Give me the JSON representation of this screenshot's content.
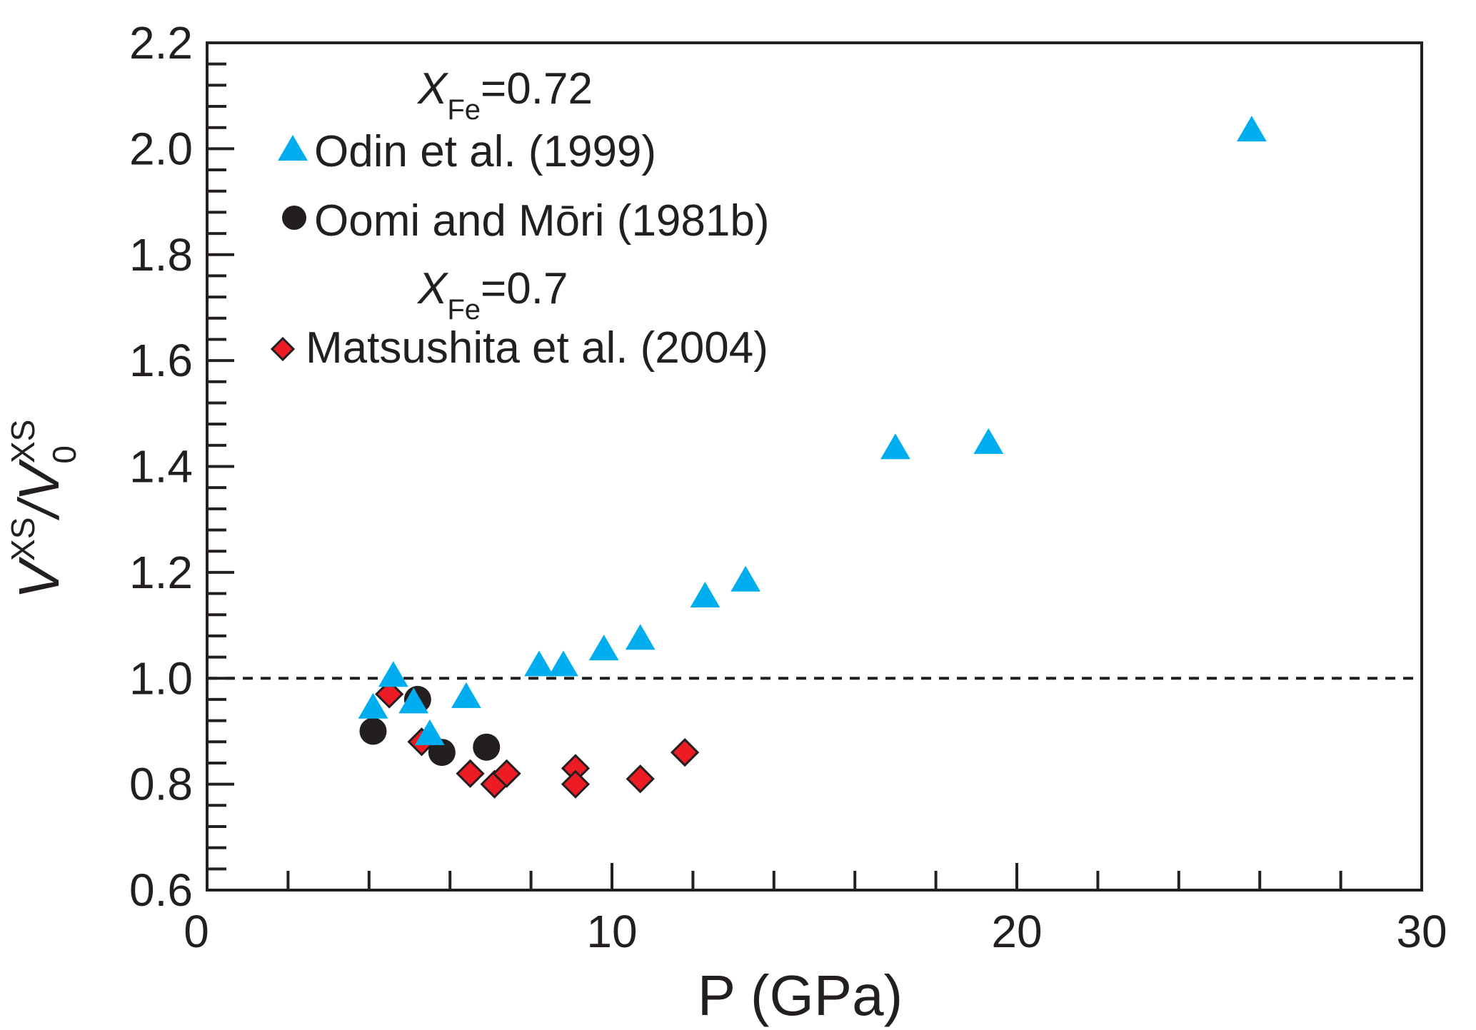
{
  "chart_data": {
    "type": "scatter",
    "title": "",
    "xlabel": "P (GPa)",
    "ylabel": {
      "main": "V",
      "sup": "XS",
      "slash": "/",
      "main2": "V",
      "sub2": "0",
      "sup2": "XS"
    },
    "xlim": [
      0,
      30
    ],
    "ylim": [
      0.6,
      2.2
    ],
    "x_ticks": [
      0,
      10,
      20,
      30
    ],
    "x_tick_labels": [
      "0",
      "10",
      "20",
      "30"
    ],
    "x_minor_step": 2,
    "y_ticks": [
      0.6,
      0.8,
      1.0,
      1.2,
      1.4,
      1.6,
      1.8,
      2.0,
      2.2
    ],
    "y_tick_labels": [
      "0.6",
      "0.8",
      "1.0",
      "1.2",
      "1.4",
      "1.6",
      "1.8",
      "2.0",
      "2.2"
    ],
    "y_minor_step": 0.04,
    "grid": false,
    "reference_line": {
      "y": 1.0,
      "style": "dashed"
    },
    "legend_position": "top-left",
    "legend_groups": [
      {
        "heading_var": "X",
        "heading_sub": "Fe",
        "heading_value": "=0.72",
        "series_indices": [
          0,
          1
        ]
      },
      {
        "heading_var": "X",
        "heading_sub": "Fe",
        "heading_value": "=0.7",
        "series_indices": [
          2
        ]
      }
    ],
    "series": [
      {
        "name": "Odin et al. (1999)",
        "marker": "triangle",
        "color": "#00aeef",
        "points": [
          [
            4.1,
            0.94
          ],
          [
            4.6,
            1.0
          ],
          [
            5.1,
            0.95
          ],
          [
            5.5,
            0.89
          ],
          [
            6.4,
            0.96
          ],
          [
            8.2,
            1.02
          ],
          [
            8.8,
            1.02
          ],
          [
            9.8,
            1.05
          ],
          [
            10.7,
            1.07
          ],
          [
            12.3,
            1.15
          ],
          [
            13.3,
            1.18
          ],
          [
            17.0,
            1.43
          ],
          [
            19.3,
            1.44
          ],
          [
            25.8,
            2.03
          ]
        ]
      },
      {
        "name": "Oomi and Mōri (1981b)",
        "marker": "circle",
        "color": "#231f20",
        "points": [
          [
            4.1,
            0.9
          ],
          [
            5.2,
            0.96
          ],
          [
            5.8,
            0.86
          ],
          [
            6.9,
            0.87
          ]
        ]
      },
      {
        "name": "Matsushita et al. (2004)",
        "marker": "diamond",
        "color": "#ed1c24",
        "points": [
          [
            4.5,
            0.97
          ],
          [
            5.3,
            0.88
          ],
          [
            6.5,
            0.82
          ],
          [
            7.1,
            0.8
          ],
          [
            7.4,
            0.82
          ],
          [
            9.1,
            0.83
          ],
          [
            9.1,
            0.8
          ],
          [
            10.7,
            0.81
          ],
          [
            11.8,
            0.86
          ]
        ]
      }
    ]
  }
}
